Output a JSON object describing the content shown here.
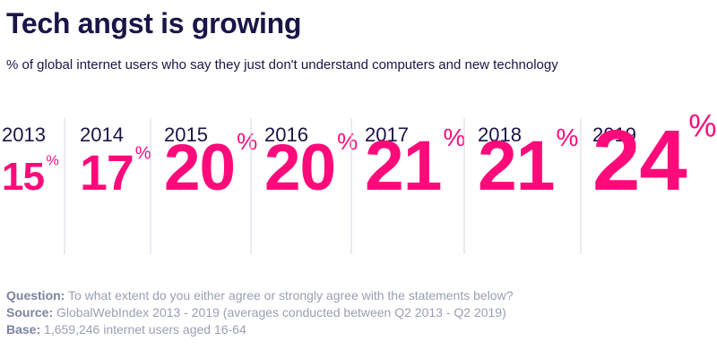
{
  "title": "Tech angst is growing",
  "subtitle": "% of global internet users who say they just don't understand computers and new technology",
  "chart_data": {
    "type": "bar",
    "categories": [
      "2013",
      "2014",
      "2015",
      "2016",
      "2017",
      "2018",
      "2019"
    ],
    "values": [
      15,
      17,
      20,
      20,
      21,
      21,
      24
    ],
    "unit": "%",
    "colors": {
      "value": "#ff0a7a",
      "year": "#1a1547",
      "divider": "#d4d9e6"
    }
  },
  "notes": {
    "question_key": "Question:",
    "question": "To what extent do you either agree or strongly agree with the statements below?",
    "source_key": "Source:",
    "source": "GlobalWebIndex 2013 - 2019 (averages conducted between Q2 2013 - Q2 2019)",
    "base_key": "Base:",
    "base": "1,659,246 internet users aged 16-64"
  }
}
